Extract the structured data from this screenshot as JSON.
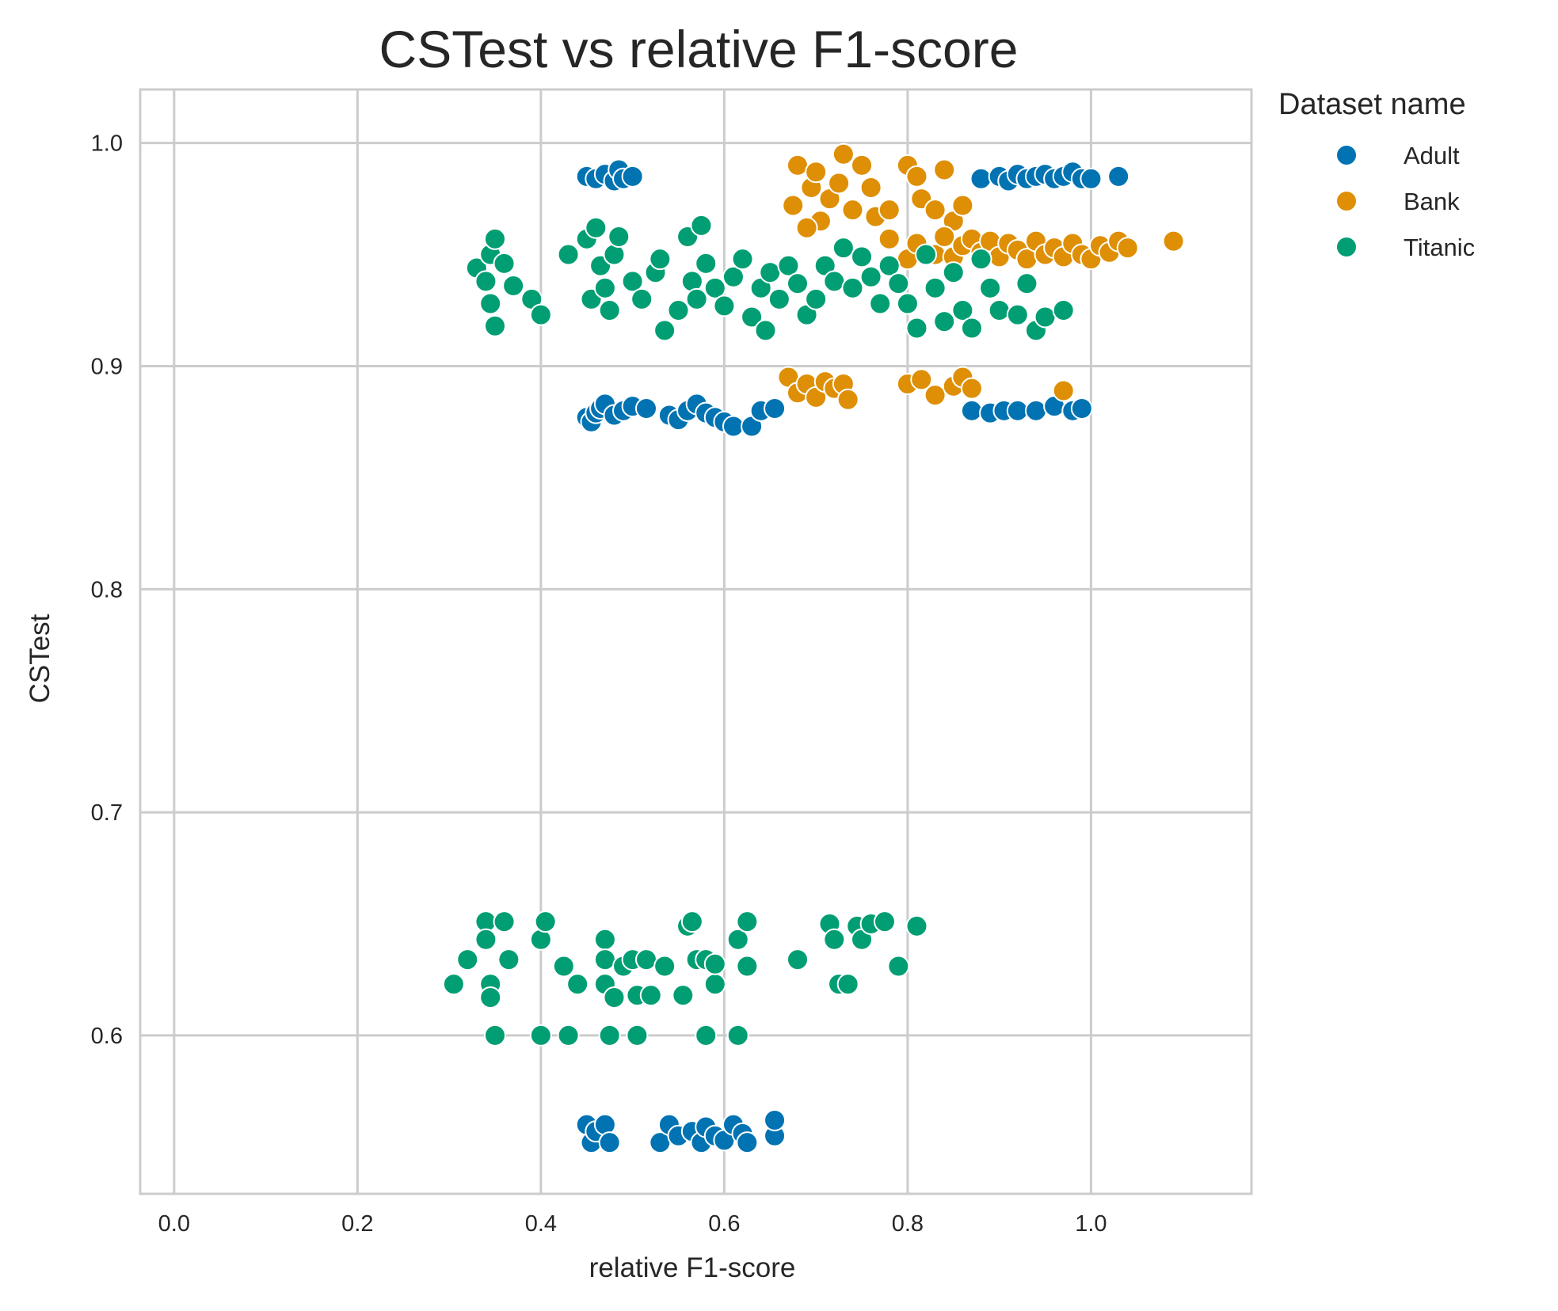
{
  "chart_data": {
    "type": "scatter",
    "title": "CSTest vs relative F1-score",
    "xlabel": "relative F1-score",
    "ylabel": "CSTest",
    "xlim": [
      -0.037,
      1.175
    ],
    "ylim": [
      0.529,
      1.024
    ],
    "x_ticks": [
      0.0,
      0.2,
      0.4,
      0.6,
      0.8,
      1.0
    ],
    "x_tick_labels": [
      "0.0",
      "0.2",
      "0.4",
      "0.6",
      "0.8",
      "1.0"
    ],
    "y_ticks": [
      0.6,
      0.7,
      0.8,
      0.9,
      1.0
    ],
    "y_tick_labels": [
      "0.6",
      "0.7",
      "0.8",
      "0.9",
      "1.0"
    ],
    "grid": true,
    "legend": {
      "title": "Dataset name",
      "placement": "outside-right"
    },
    "series": [
      {
        "name": "Adult",
        "color": "#0173b2",
        "points": [
          [
            0.45,
            0.985
          ],
          [
            0.46,
            0.984
          ],
          [
            0.47,
            0.986
          ],
          [
            0.48,
            0.983
          ],
          [
            0.485,
            0.988
          ],
          [
            0.49,
            0.984
          ],
          [
            0.5,
            0.985
          ],
          [
            0.88,
            0.984
          ],
          [
            0.9,
            0.985
          ],
          [
            0.91,
            0.983
          ],
          [
            0.92,
            0.986
          ],
          [
            0.93,
            0.984
          ],
          [
            0.94,
            0.985
          ],
          [
            0.95,
            0.986
          ],
          [
            0.96,
            0.984
          ],
          [
            0.97,
            0.985
          ],
          [
            0.98,
            0.987
          ],
          [
            0.99,
            0.984
          ],
          [
            1.0,
            0.984
          ],
          [
            1.03,
            0.985
          ],
          [
            0.45,
            0.877
          ],
          [
            0.455,
            0.875
          ],
          [
            0.46,
            0.879
          ],
          [
            0.465,
            0.881
          ],
          [
            0.47,
            0.883
          ],
          [
            0.48,
            0.878
          ],
          [
            0.49,
            0.88
          ],
          [
            0.5,
            0.882
          ],
          [
            0.515,
            0.881
          ],
          [
            0.54,
            0.878
          ],
          [
            0.55,
            0.876
          ],
          [
            0.56,
            0.88
          ],
          [
            0.57,
            0.883
          ],
          [
            0.58,
            0.879
          ],
          [
            0.59,
            0.877
          ],
          [
            0.6,
            0.875
          ],
          [
            0.61,
            0.873
          ],
          [
            0.63,
            0.873
          ],
          [
            0.64,
            0.88
          ],
          [
            0.655,
            0.881
          ],
          [
            0.87,
            0.88
          ],
          [
            0.89,
            0.879
          ],
          [
            0.905,
            0.88
          ],
          [
            0.92,
            0.88
          ],
          [
            0.94,
            0.88
          ],
          [
            0.96,
            0.882
          ],
          [
            0.98,
            0.88
          ],
          [
            0.99,
            0.881
          ],
          [
            0.45,
            0.56
          ],
          [
            0.455,
            0.552
          ],
          [
            0.46,
            0.557
          ],
          [
            0.47,
            0.56
          ],
          [
            0.475,
            0.552
          ],
          [
            0.53,
            0.552
          ],
          [
            0.54,
            0.56
          ],
          [
            0.55,
            0.555
          ],
          [
            0.565,
            0.557
          ],
          [
            0.575,
            0.552
          ],
          [
            0.58,
            0.559
          ],
          [
            0.59,
            0.555
          ],
          [
            0.6,
            0.553
          ],
          [
            0.61,
            0.56
          ],
          [
            0.62,
            0.556
          ],
          [
            0.625,
            0.552
          ],
          [
            0.655,
            0.555
          ],
          [
            0.655,
            0.562
          ]
        ]
      },
      {
        "name": "Bank",
        "color": "#de8f05",
        "points": [
          [
            0.68,
            0.99
          ],
          [
            0.695,
            0.98
          ],
          [
            0.7,
            0.987
          ],
          [
            0.705,
            0.965
          ],
          [
            0.715,
            0.975
          ],
          [
            0.725,
            0.982
          ],
          [
            0.73,
            0.995
          ],
          [
            0.74,
            0.97
          ],
          [
            0.75,
            0.99
          ],
          [
            0.76,
            0.98
          ],
          [
            0.765,
            0.967
          ],
          [
            0.78,
            0.97
          ],
          [
            0.8,
            0.99
          ],
          [
            0.81,
            0.985
          ],
          [
            0.815,
            0.975
          ],
          [
            0.83,
            0.97
          ],
          [
            0.84,
            0.988
          ],
          [
            0.85,
            0.965
          ],
          [
            0.86,
            0.972
          ],
          [
            0.675,
            0.972
          ],
          [
            0.69,
            0.962
          ],
          [
            0.78,
            0.957
          ],
          [
            0.83,
            0.95
          ],
          [
            0.84,
            0.958
          ],
          [
            0.85,
            0.949
          ],
          [
            0.86,
            0.954
          ],
          [
            0.87,
            0.957
          ],
          [
            0.88,
            0.951
          ],
          [
            0.89,
            0.956
          ],
          [
            0.9,
            0.949
          ],
          [
            0.91,
            0.955
          ],
          [
            0.92,
            0.952
          ],
          [
            0.93,
            0.948
          ],
          [
            0.94,
            0.956
          ],
          [
            0.95,
            0.95
          ],
          [
            0.96,
            0.953
          ],
          [
            0.97,
            0.949
          ],
          [
            0.98,
            0.955
          ],
          [
            0.99,
            0.95
          ],
          [
            1.0,
            0.948
          ],
          [
            1.01,
            0.954
          ],
          [
            1.02,
            0.951
          ],
          [
            1.03,
            0.956
          ],
          [
            1.04,
            0.953
          ],
          [
            1.09,
            0.956
          ],
          [
            0.8,
            0.948
          ],
          [
            0.81,
            0.955
          ],
          [
            0.67,
            0.895
          ],
          [
            0.68,
            0.888
          ],
          [
            0.69,
            0.892
          ],
          [
            0.7,
            0.886
          ],
          [
            0.71,
            0.893
          ],
          [
            0.72,
            0.89
          ],
          [
            0.73,
            0.892
          ],
          [
            0.735,
            0.885
          ],
          [
            0.8,
            0.892
          ],
          [
            0.815,
            0.894
          ],
          [
            0.83,
            0.887
          ],
          [
            0.85,
            0.891
          ],
          [
            0.86,
            0.895
          ],
          [
            0.87,
            0.89
          ],
          [
            0.97,
            0.889
          ]
        ]
      },
      {
        "name": "Titanic",
        "color": "#029e73",
        "points": [
          [
            0.33,
            0.944
          ],
          [
            0.34,
            0.938
          ],
          [
            0.345,
            0.928
          ],
          [
            0.35,
            0.918
          ],
          [
            0.345,
            0.95
          ],
          [
            0.35,
            0.957
          ],
          [
            0.36,
            0.946
          ],
          [
            0.37,
            0.936
          ],
          [
            0.39,
            0.93
          ],
          [
            0.4,
            0.923
          ],
          [
            0.43,
            0.95
          ],
          [
            0.45,
            0.957
          ],
          [
            0.455,
            0.93
          ],
          [
            0.46,
            0.962
          ],
          [
            0.465,
            0.945
          ],
          [
            0.47,
            0.935
          ],
          [
            0.475,
            0.925
          ],
          [
            0.48,
            0.95
          ],
          [
            0.485,
            0.958
          ],
          [
            0.5,
            0.938
          ],
          [
            0.51,
            0.93
          ],
          [
            0.525,
            0.942
          ],
          [
            0.53,
            0.948
          ],
          [
            0.535,
            0.916
          ],
          [
            0.55,
            0.925
          ],
          [
            0.56,
            0.958
          ],
          [
            0.565,
            0.938
          ],
          [
            0.57,
            0.93
          ],
          [
            0.575,
            0.963
          ],
          [
            0.58,
            0.946
          ],
          [
            0.59,
            0.935
          ],
          [
            0.6,
            0.927
          ],
          [
            0.61,
            0.94
          ],
          [
            0.62,
            0.948
          ],
          [
            0.63,
            0.922
          ],
          [
            0.64,
            0.935
          ],
          [
            0.645,
            0.916
          ],
          [
            0.65,
            0.942
          ],
          [
            0.66,
            0.93
          ],
          [
            0.67,
            0.945
          ],
          [
            0.68,
            0.937
          ],
          [
            0.69,
            0.923
          ],
          [
            0.7,
            0.93
          ],
          [
            0.71,
            0.945
          ],
          [
            0.72,
            0.938
          ],
          [
            0.73,
            0.953
          ],
          [
            0.74,
            0.935
          ],
          [
            0.75,
            0.949
          ],
          [
            0.76,
            0.94
          ],
          [
            0.77,
            0.928
          ],
          [
            0.78,
            0.945
          ],
          [
            0.79,
            0.937
          ],
          [
            0.8,
            0.928
          ],
          [
            0.81,
            0.917
          ],
          [
            0.82,
            0.95
          ],
          [
            0.83,
            0.935
          ],
          [
            0.84,
            0.92
          ],
          [
            0.85,
            0.942
          ],
          [
            0.86,
            0.925
          ],
          [
            0.87,
            0.917
          ],
          [
            0.88,
            0.948
          ],
          [
            0.89,
            0.935
          ],
          [
            0.9,
            0.925
          ],
          [
            0.92,
            0.923
          ],
          [
            0.93,
            0.937
          ],
          [
            0.94,
            0.916
          ],
          [
            0.95,
            0.922
          ],
          [
            0.97,
            0.925
          ],
          [
            0.305,
            0.623
          ],
          [
            0.32,
            0.634
          ],
          [
            0.34,
            0.651
          ],
          [
            0.34,
            0.643
          ],
          [
            0.345,
            0.623
          ],
          [
            0.345,
            0.617
          ],
          [
            0.35,
            0.6
          ],
          [
            0.36,
            0.651
          ],
          [
            0.365,
            0.634
          ],
          [
            0.4,
            0.643
          ],
          [
            0.4,
            0.6
          ],
          [
            0.405,
            0.651
          ],
          [
            0.425,
            0.631
          ],
          [
            0.43,
            0.6
          ],
          [
            0.44,
            0.623
          ],
          [
            0.47,
            0.643
          ],
          [
            0.47,
            0.634
          ],
          [
            0.47,
            0.623
          ],
          [
            0.475,
            0.6
          ],
          [
            0.48,
            0.617
          ],
          [
            0.49,
            0.631
          ],
          [
            0.5,
            0.634
          ],
          [
            0.505,
            0.6
          ],
          [
            0.505,
            0.618
          ],
          [
            0.515,
            0.634
          ],
          [
            0.52,
            0.618
          ],
          [
            0.535,
            0.631
          ],
          [
            0.555,
            0.618
          ],
          [
            0.56,
            0.649
          ],
          [
            0.565,
            0.651
          ],
          [
            0.57,
            0.634
          ],
          [
            0.58,
            0.6
          ],
          [
            0.58,
            0.634
          ],
          [
            0.59,
            0.623
          ],
          [
            0.59,
            0.632
          ],
          [
            0.615,
            0.6
          ],
          [
            0.615,
            0.643
          ],
          [
            0.625,
            0.651
          ],
          [
            0.625,
            0.631
          ],
          [
            0.68,
            0.634
          ],
          [
            0.715,
            0.65
          ],
          [
            0.72,
            0.643
          ],
          [
            0.725,
            0.623
          ],
          [
            0.735,
            0.623
          ],
          [
            0.745,
            0.649
          ],
          [
            0.75,
            0.643
          ],
          [
            0.76,
            0.65
          ],
          [
            0.775,
            0.651
          ],
          [
            0.79,
            0.631
          ],
          [
            0.81,
            0.649
          ]
        ]
      }
    ]
  }
}
